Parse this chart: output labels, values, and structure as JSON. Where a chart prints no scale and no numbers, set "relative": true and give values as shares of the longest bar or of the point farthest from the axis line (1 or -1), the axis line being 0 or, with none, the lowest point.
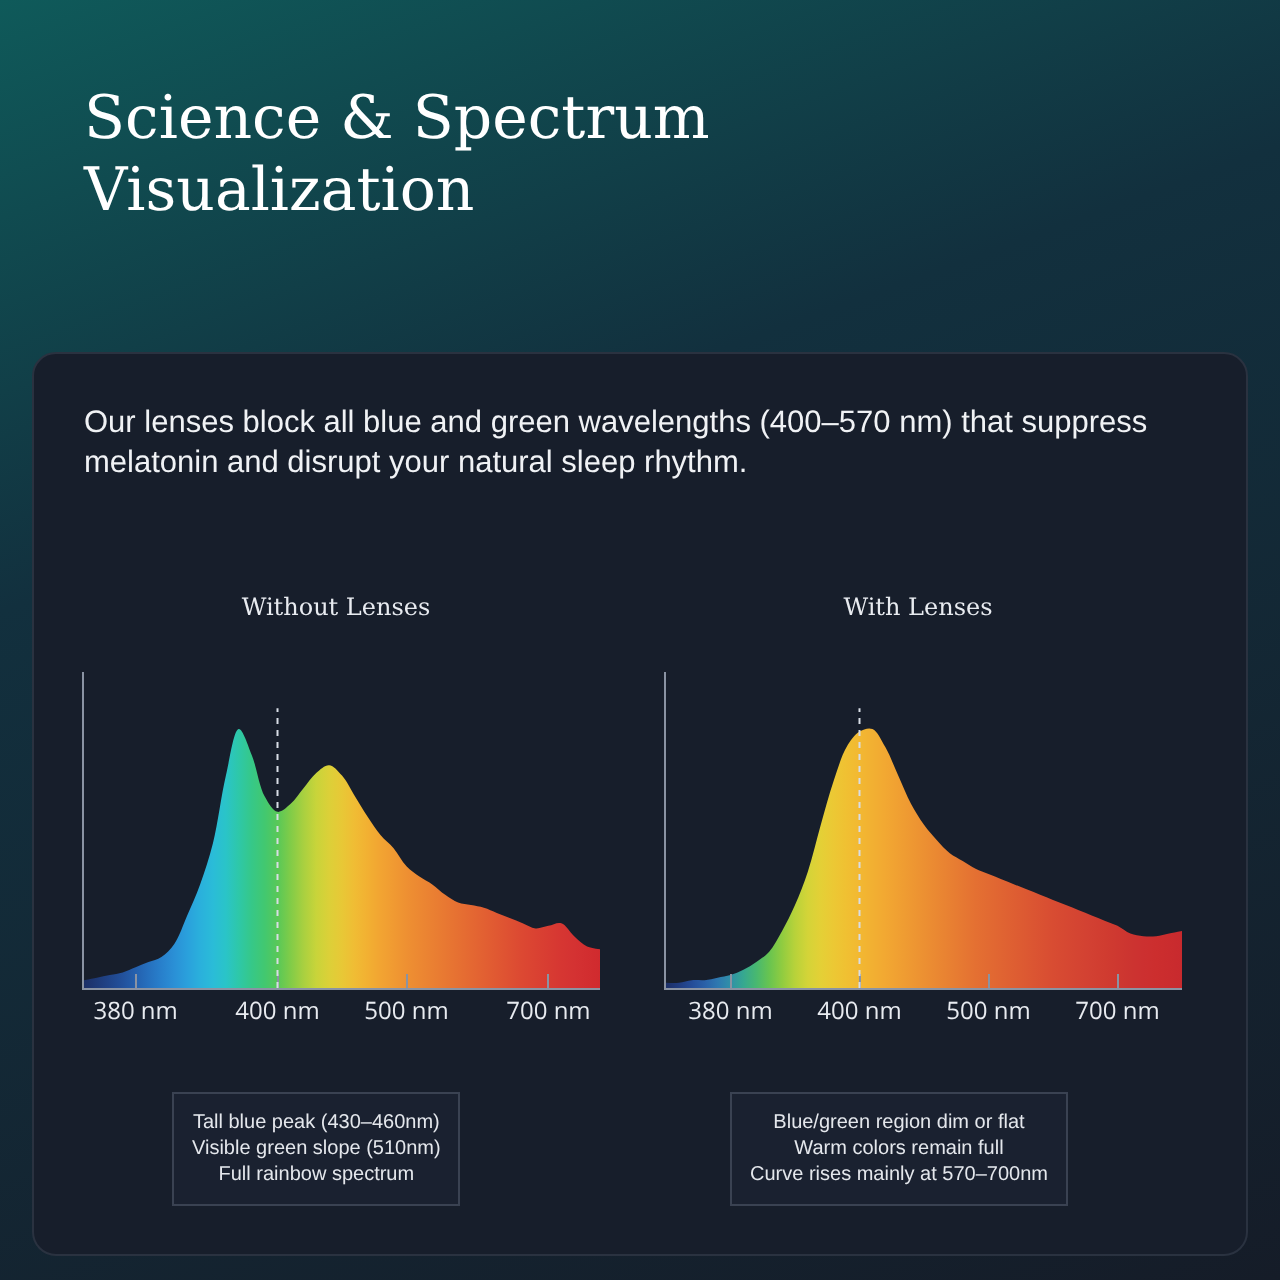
{
  "chart_data": [
    {
      "type": "other",
      "title": "Science & Spectrum Visualization",
      "subtitle": "Our lenses block all blue and green wavelengths (400–570 nm) that suppress melatonin and disrupt your natural sleep rhythm."
    },
    {
      "type": "area",
      "title": "Without Lenses",
      "relative": true,
      "categories": [
        null,
        null,
        null,
        null,
        "380 nm",
        null,
        null,
        null,
        null,
        null,
        null,
        null,
        null,
        null,
        null,
        "400 nm",
        null,
        null,
        null,
        null,
        null,
        null,
        null,
        null,
        null,
        "500 nm",
        null,
        null,
        null,
        null,
        null,
        null,
        null,
        null,
        null,
        null,
        "700 nm",
        null,
        null,
        null,
        null
      ],
      "series": [
        {
          "values": [
            0.03,
            0.04,
            0.05,
            0.06,
            0.08,
            0.1,
            0.12,
            0.17,
            0.28,
            0.4,
            0.56,
            0.82,
            1.0,
            0.9,
            0.74,
            0.68,
            0.71,
            0.77,
            0.83,
            0.86,
            0.82,
            0.74,
            0.66,
            0.59,
            0.54,
            0.47,
            0.43,
            0.4,
            0.36,
            0.33,
            0.32,
            0.31,
            0.29,
            0.27,
            0.25,
            0.23,
            0.24,
            0.25,
            0.2,
            0.16,
            0.15
          ],
          "colors": [
            "#1c2f66",
            "#1e3a78",
            "#20458a",
            "#22519c",
            "#2460ae",
            "#2670be",
            "#2880cc",
            "#2a90d6",
            "#2aa0dc",
            "#2ab0dc",
            "#2abcd8",
            "#2ac4c8",
            "#2ec8a8",
            "#36c888",
            "#42c870",
            "#58c858",
            "#80cc48",
            "#a8d040",
            "#c8d43a",
            "#dcd038",
            "#e8c836",
            "#f0bc34",
            "#f2b032",
            "#f2a432",
            "#f09a32",
            "#ee9032",
            "#ec8832",
            "#ea8032",
            "#e87832",
            "#e67032",
            "#e46832",
            "#e26032",
            "#e05832",
            "#de5032",
            "#dc4832",
            "#da4232",
            "#d83c32",
            "#d63632",
            "#d43232",
            "#d22e30",
            "#d02a2e"
          ]
        }
      ],
      "ref_lines": [
        {
          "axis": "x",
          "value": "400 nm",
          "line_style": "dotted",
          "color": "#d8dde6"
        }
      ],
      "annotations": [
        "Tall blue peak (430–460nm)\nVisible green slope (510nm)\nFull rainbow spectrum"
      ]
    },
    {
      "type": "area",
      "title": "With Lenses",
      "relative": true,
      "categories": [
        null,
        null,
        null,
        null,
        null,
        "380 nm",
        null,
        null,
        null,
        null,
        null,
        null,
        null,
        null,
        null,
        "400 nm",
        null,
        null,
        null,
        null,
        null,
        null,
        null,
        null,
        null,
        "500 nm",
        null,
        null,
        null,
        null,
        null,
        null,
        null,
        null,
        null,
        "700 nm",
        null,
        null,
        null,
        null,
        null
      ],
      "series": [
        {
          "values": [
            0.02,
            0.02,
            0.03,
            0.03,
            0.04,
            0.05,
            0.07,
            0.1,
            0.14,
            0.22,
            0.32,
            0.45,
            0.63,
            0.8,
            0.93,
            0.99,
            1.0,
            0.93,
            0.82,
            0.71,
            0.63,
            0.57,
            0.52,
            0.49,
            0.46,
            0.44,
            0.42,
            0.4,
            0.38,
            0.36,
            0.34,
            0.32,
            0.3,
            0.28,
            0.26,
            0.24,
            0.21,
            0.2,
            0.2,
            0.21,
            0.22
          ],
          "colors": [
            "#1c2f66",
            "#203c80",
            "#244c98",
            "#2a60a8",
            "#2e78b0",
            "#3090a8",
            "#36a890",
            "#48b870",
            "#68c450",
            "#90cc40",
            "#b8d23a",
            "#d4d438",
            "#e4d036",
            "#ecc834",
            "#f0c032",
            "#f2b832",
            "#f2b032",
            "#f2a832",
            "#f0a032",
            "#ee9832",
            "#ec9032",
            "#ea8832",
            "#e88032",
            "#e67832",
            "#e47032",
            "#e26a32",
            "#e06432",
            "#de5e32",
            "#dc5832",
            "#da5232",
            "#d84c32",
            "#d64832",
            "#d44432",
            "#d24032",
            "#d03c30",
            "#ce3830",
            "#cc3430",
            "#cc3030",
            "#cc2e2e",
            "#ca2c2e",
            "#c82a2e"
          ]
        }
      ],
      "ref_lines": [
        {
          "axis": "x",
          "value": "400 nm",
          "line_style": "dotted",
          "color": "#d8dde6"
        }
      ],
      "annotations": [
        "Blue/green region dim or flat\nWarm colors remain full\nCurve rises mainly at 570–700nm"
      ]
    }
  ]
}
